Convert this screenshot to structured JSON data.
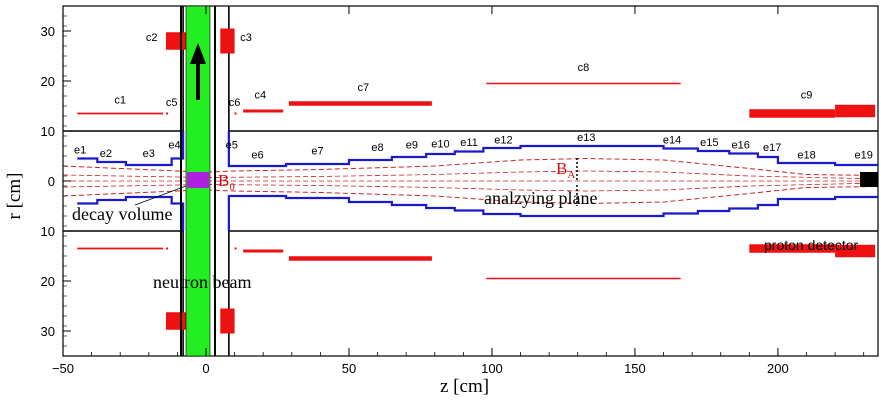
{
  "axes": {
    "xlabel": "z [cm]",
    "ylabel": "r [cm]",
    "xlim": [
      -50,
      235
    ],
    "ylim": [
      -35,
      35
    ],
    "x_ticks": [
      "−50",
      "0",
      "50",
      "100",
      "150",
      "200"
    ],
    "y_ticks_top": [
      "30",
      "20",
      "10",
      "0"
    ],
    "y_ticks_bottom": [
      "10",
      "20",
      "30"
    ]
  },
  "labels": {
    "b0": "B",
    "b0_sub": "0",
    "ba": "B",
    "ba_sub": "A",
    "decay_volume": "decay volume",
    "analyzing_plane": "analzying plane",
    "neutron_beam": "neutron beam",
    "proton_detector": "proton detector"
  },
  "coils": [
    {
      "name": "c1",
      "z1": -45,
      "z2": -15,
      "r": 13.5,
      "thick": 0.35
    },
    {
      "name": "c4",
      "z1": 13,
      "z2": 27,
      "r": 14,
      "thick": 0.6
    },
    {
      "name": "c7",
      "z1": 29,
      "z2": 79,
      "r": 15.5,
      "thick": 0.9
    },
    {
      "name": "c8",
      "z1": 98,
      "z2": 166,
      "r": 19.5,
      "thick": 0.3
    },
    {
      "name": "c9a",
      "z1": 190,
      "z2": 220,
      "r": 13.5,
      "thick": 1.7
    },
    {
      "name": "c9b",
      "z1": 220,
      "z2": 234,
      "r": 14,
      "thick": 2.5
    },
    {
      "name": "c2",
      "z1": -14,
      "z2": -7,
      "r": 28,
      "thick": 3.5
    },
    {
      "name": "c3",
      "z1": 5,
      "z2": 10,
      "r": 28,
      "thick": 5
    }
  ],
  "coil_labels": [
    {
      "text": "c1",
      "z": -30,
      "r": 15.5
    },
    {
      "text": "c2",
      "z": -19,
      "r": 28
    },
    {
      "text": "c3",
      "z": 14,
      "r": 28
    },
    {
      "text": "c4",
      "z": 19,
      "r": 16.5
    },
    {
      "text": "c5",
      "z": -12,
      "r": 15
    },
    {
      "text": "c6",
      "z": 10,
      "r": 15
    },
    {
      "text": "c7",
      "z": 55,
      "r": 18
    },
    {
      "text": "c8",
      "z": 132,
      "r": 22
    },
    {
      "text": "c9",
      "z": 210,
      "r": 16.5
    }
  ],
  "electrodes": [
    "e1",
    "e2",
    "e3",
    "e4",
    "e5",
    "e6",
    "e7",
    "e8",
    "e9",
    "e10",
    "e11",
    "e12",
    "e13",
    "e14",
    "e15",
    "e16",
    "e17",
    "e18",
    "e19"
  ],
  "electrode_positions": [
    {
      "z": -44,
      "r": 5.5
    },
    {
      "z": -35,
      "r": 4.8
    },
    {
      "z": -20,
      "r": 4.8
    },
    {
      "z": -11,
      "r": 6.5
    },
    {
      "z": 9,
      "r": 6.5
    },
    {
      "z": 18,
      "r": 4.5
    },
    {
      "z": 39,
      "r": 5.3
    },
    {
      "z": 60,
      "r": 6.0
    },
    {
      "z": 72,
      "r": 6.5
    },
    {
      "z": 82,
      "r": 6.7
    },
    {
      "z": 92,
      "r": 7.0
    },
    {
      "z": 104,
      "r": 7.5
    },
    {
      "z": 133,
      "r": 8.0
    },
    {
      "z": 163,
      "r": 7.5
    },
    {
      "z": 176,
      "r": 7.0
    },
    {
      "z": 187,
      "r": 6.5
    },
    {
      "z": 198,
      "r": 6.0
    },
    {
      "z": 210,
      "r": 4.5
    },
    {
      "z": 230,
      "r": 4.5
    }
  ]
}
